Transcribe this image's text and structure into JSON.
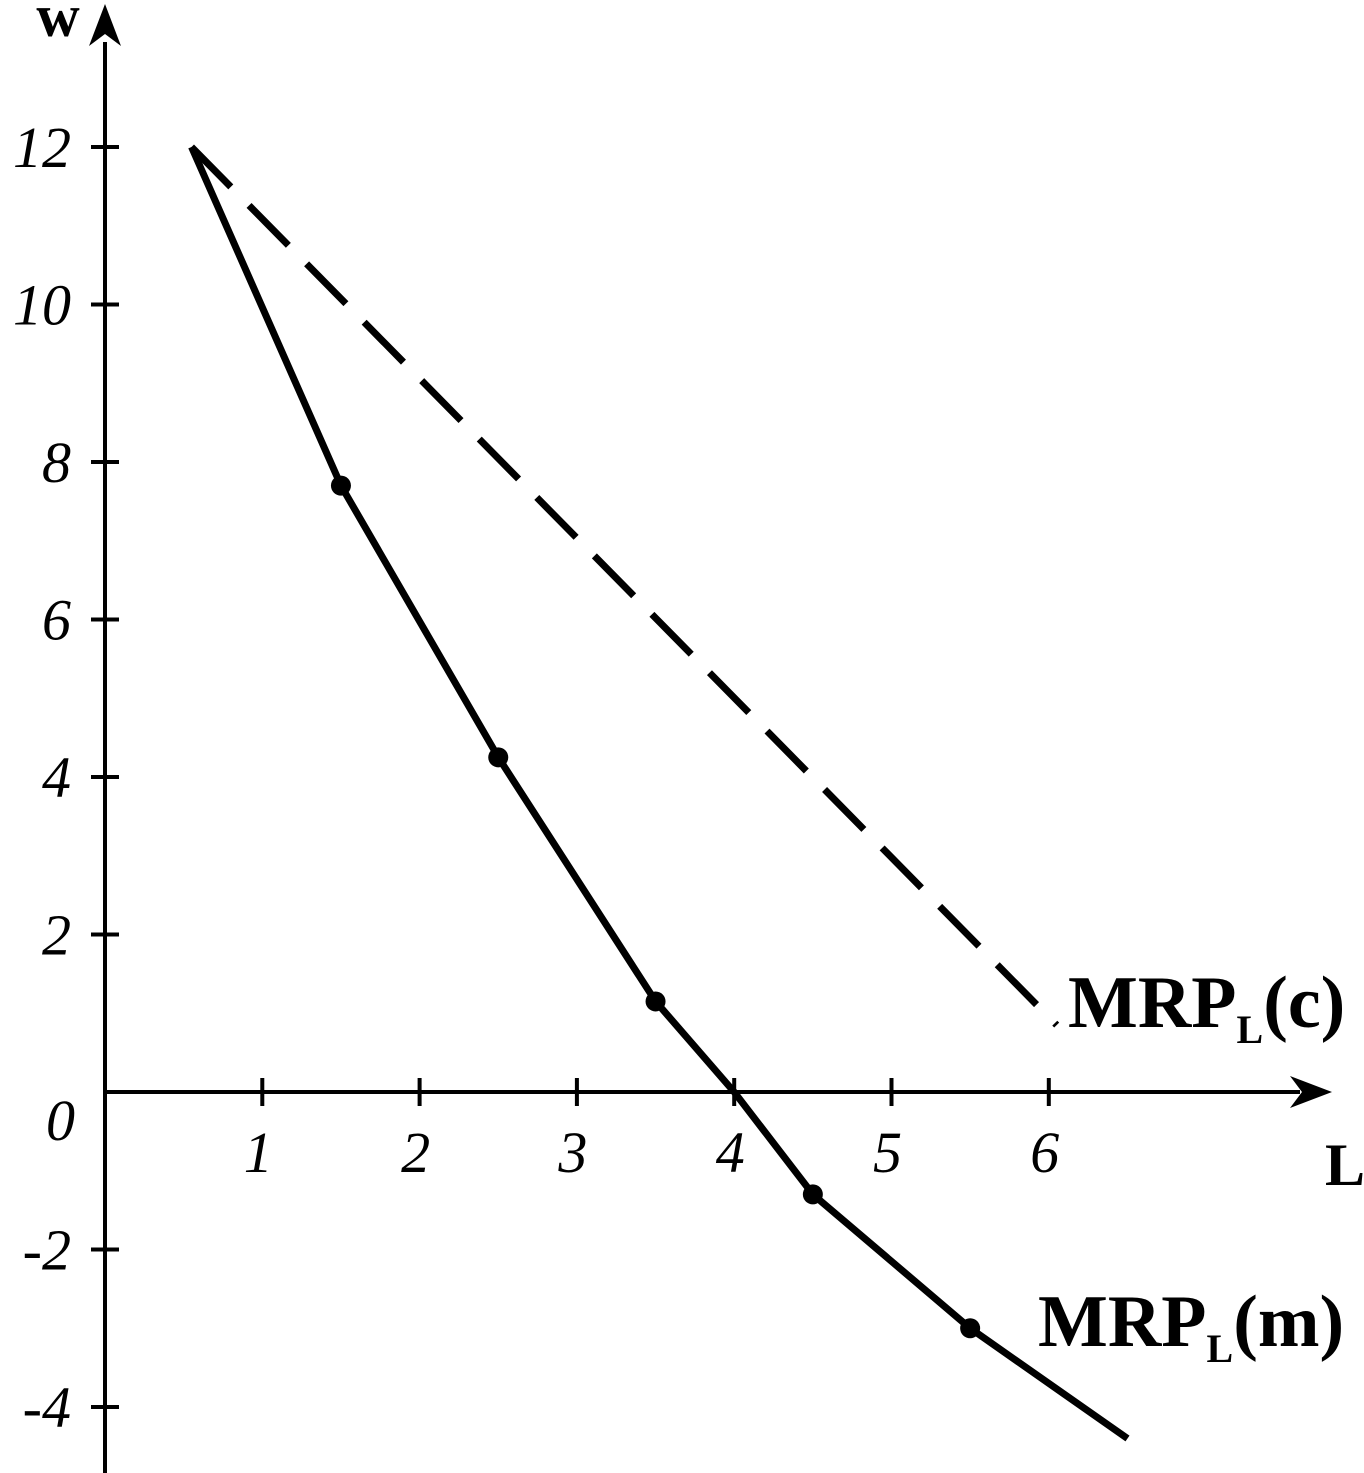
{
  "chart_data": {
    "type": "line",
    "title": "",
    "xlabel": "L",
    "ylabel": "w",
    "xlim": [
      0,
      7.5
    ],
    "ylim": [
      -4.6,
      13.8
    ],
    "x_ticks": [
      "1",
      "2",
      "3",
      "4",
      "5",
      "6"
    ],
    "x_tick_values": [
      1,
      2,
      3,
      4,
      5,
      6
    ],
    "y_ticks": [
      "12",
      "10",
      "8",
      "6",
      "4",
      "2",
      "0",
      "-2",
      "-4"
    ],
    "y_tick_values": [
      12,
      10,
      8,
      6,
      4,
      2,
      0,
      -2,
      -4
    ],
    "grid": false,
    "series": [
      {
        "name": "MRPL(c)",
        "label_main": "MRP",
        "label_sub": "L",
        "label_suffix": "(c)",
        "style": "dashed",
        "color": "#000000",
        "x": [
          0.55,
          6.05
        ],
        "y": [
          12.0,
          0.85
        ],
        "markers": []
      },
      {
        "name": "MRPL(m)",
        "label_main": "MRP",
        "label_sub": "L",
        "label_suffix": "(m)",
        "style": "solid",
        "color": "#000000",
        "x": [
          0.55,
          1.5,
          2.5,
          3.5,
          4.0,
          4.5,
          5.5,
          6.5
        ],
        "y": [
          12.0,
          7.7,
          4.25,
          1.15,
          0.0,
          -1.3,
          -3.0,
          -4.4
        ],
        "markers": [
          {
            "x": 1.5,
            "y": 7.7
          },
          {
            "x": 2.5,
            "y": 4.25
          },
          {
            "x": 3.5,
            "y": 1.15
          },
          {
            "x": 4.5,
            "y": -1.3
          },
          {
            "x": 5.5,
            "y": -3.0
          }
        ]
      }
    ]
  }
}
